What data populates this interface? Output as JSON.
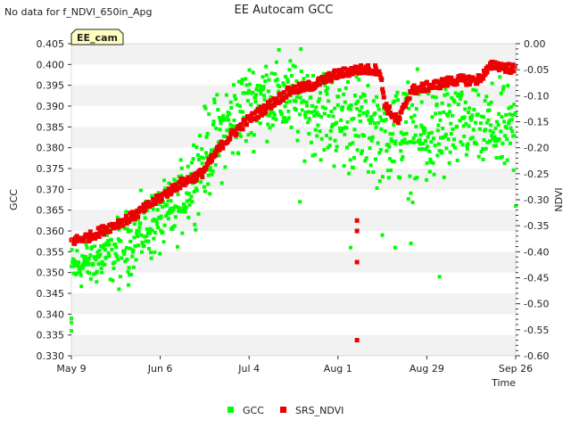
{
  "notice": "No data for f_NDVI_650in_Apg",
  "badge": "EE_cam",
  "chart_data": {
    "type": "scatter",
    "title": "EE Autocam GCC",
    "xlabel": "Time",
    "ylabel_left": "GCC",
    "ylabel_right": "NDVI",
    "x_range": [
      "2023-05-09",
      "2023-09-26"
    ],
    "x_ticks": [
      {
        "date": "2023-05-09",
        "label": "May 9"
      },
      {
        "date": "2023-06-06",
        "label": "Jun 6"
      },
      {
        "date": "2023-07-04",
        "label": "Jul 4"
      },
      {
        "date": "2023-08-01",
        "label": "Aug 1"
      },
      {
        "date": "2023-08-29",
        "label": "Aug 29"
      },
      {
        "date": "2023-09-26",
        "label": "Sep 26"
      }
    ],
    "ylim_left": [
      0.33,
      0.405
    ],
    "y_ticks_left": [
      "0.330",
      "0.335",
      "0.340",
      "0.345",
      "0.350",
      "0.355",
      "0.360",
      "0.365",
      "0.370",
      "0.375",
      "0.380",
      "0.385",
      "0.390",
      "0.395",
      "0.400",
      "0.405"
    ],
    "ylim_right": [
      -0.6,
      0.0
    ],
    "y_ticks_right": [
      "-0.60",
      "-0.55",
      "-0.50",
      "-0.45",
      "-0.40",
      "-0.35",
      "-0.30",
      "-0.25",
      "-0.20",
      "-0.15",
      "-0.10",
      "-0.05",
      "0.00"
    ],
    "grid": "horizontal alternating bands",
    "legend_position": "bottom-center",
    "series": [
      {
        "name": "GCC",
        "axis": "left",
        "color": "#00ff00",
        "trend": [
          {
            "date": "2023-05-09",
            "center": 0.351,
            "spread": 0.004
          },
          {
            "date": "2023-05-20",
            "center": 0.354,
            "spread": 0.005
          },
          {
            "date": "2023-06-01",
            "center": 0.36,
            "spread": 0.006
          },
          {
            "date": "2023-06-10",
            "center": 0.364,
            "spread": 0.006
          },
          {
            "date": "2023-06-20",
            "center": 0.378,
            "spread": 0.008
          },
          {
            "date": "2023-06-28",
            "center": 0.386,
            "spread": 0.008
          },
          {
            "date": "2023-07-08",
            "center": 0.393,
            "spread": 0.007
          },
          {
            "date": "2023-07-20",
            "center": 0.391,
            "spread": 0.008
          },
          {
            "date": "2023-08-01",
            "center": 0.387,
            "spread": 0.009
          },
          {
            "date": "2023-08-15",
            "center": 0.384,
            "spread": 0.009
          },
          {
            "date": "2023-08-29",
            "center": 0.382,
            "spread": 0.01
          },
          {
            "date": "2023-09-10",
            "center": 0.386,
            "spread": 0.008
          },
          {
            "date": "2023-09-26",
            "center": 0.383,
            "spread": 0.008
          }
        ],
        "outliers": [
          {
            "x": "2023-05-09",
            "y": 0.338
          },
          {
            "x": "2023-05-09",
            "y": 0.336
          },
          {
            "x": "2023-05-09",
            "y": 0.339
          },
          {
            "x": "2023-05-24",
            "y": 0.346
          },
          {
            "x": "2023-05-27",
            "y": 0.347
          },
          {
            "x": "2023-07-20",
            "y": 0.367
          },
          {
            "x": "2023-08-05",
            "y": 0.356
          },
          {
            "x": "2023-08-15",
            "y": 0.359
          },
          {
            "x": "2023-08-19",
            "y": 0.356
          },
          {
            "x": "2023-08-24",
            "y": 0.357
          },
          {
            "x": "2023-09-02",
            "y": 0.349
          },
          {
            "x": "2023-09-26",
            "y": 0.366
          }
        ]
      },
      {
        "name": "SRS_NDVI",
        "axis": "right",
        "color": "#ee0000",
        "values": [
          {
            "x": "2023-05-09",
            "y": -0.38
          },
          {
            "x": "2023-05-15",
            "y": -0.37
          },
          {
            "x": "2023-05-22",
            "y": -0.35
          },
          {
            "x": "2023-05-29",
            "y": -0.33
          },
          {
            "x": "2023-06-05",
            "y": -0.3
          },
          {
            "x": "2023-06-12",
            "y": -0.27
          },
          {
            "x": "2023-06-19",
            "y": -0.25
          },
          {
            "x": "2023-06-26",
            "y": -0.19
          },
          {
            "x": "2023-07-03",
            "y": -0.15
          },
          {
            "x": "2023-07-10",
            "y": -0.12
          },
          {
            "x": "2023-07-17",
            "y": -0.09
          },
          {
            "x": "2023-07-24",
            "y": -0.08
          },
          {
            "x": "2023-07-31",
            "y": -0.06
          },
          {
            "x": "2023-08-07",
            "y": -0.05
          },
          {
            "x": "2023-08-14",
            "y": -0.05
          },
          {
            "x": "2023-08-16",
            "y": -0.12
          },
          {
            "x": "2023-08-20",
            "y": -0.15
          },
          {
            "x": "2023-08-24",
            "y": -0.09
          },
          {
            "x": "2023-08-31",
            "y": -0.08
          },
          {
            "x": "2023-09-07",
            "y": -0.07
          },
          {
            "x": "2023-09-14",
            "y": -0.07
          },
          {
            "x": "2023-09-19",
            "y": -0.04
          },
          {
            "x": "2023-09-26",
            "y": -0.05
          }
        ],
        "outliers": [
          {
            "x": "2023-08-07",
            "y": -0.34
          },
          {
            "x": "2023-08-07",
            "y": -0.36
          },
          {
            "x": "2023-08-07",
            "y": -0.42
          },
          {
            "x": "2023-08-07",
            "y": -0.57
          }
        ]
      }
    ]
  }
}
